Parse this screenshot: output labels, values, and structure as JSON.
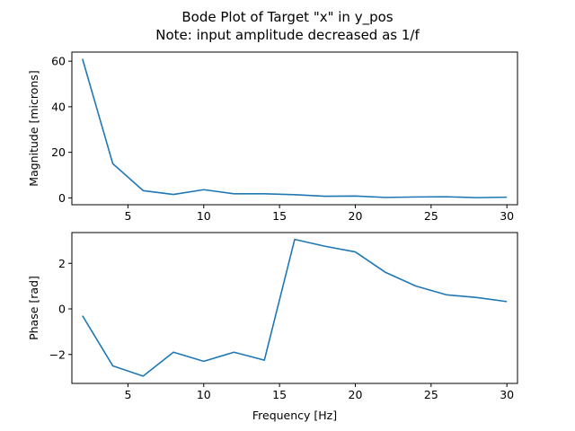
{
  "figure": {
    "title_line1": "Bode Plot of Target \"x\" in y_pos",
    "title_line2": "Note: input amplitude decreased as 1/f"
  },
  "chart_data": [
    {
      "type": "line",
      "id": "magnitude",
      "title": "",
      "xlabel": "",
      "ylabel": "Magnitude [microns]",
      "xlim": [
        1.3,
        30.7
      ],
      "ylim": [
        -3,
        64
      ],
      "xticks": [
        5,
        10,
        15,
        20,
        25,
        30
      ],
      "yticks": [
        0,
        20,
        40,
        60
      ],
      "grid": false,
      "color": "#1f77b4",
      "x": [
        2,
        4,
        6,
        8,
        10,
        12,
        14,
        16,
        18,
        20,
        22,
        24,
        26,
        28,
        30
      ],
      "y": [
        61,
        15,
        3.2,
        1.5,
        3.6,
        1.8,
        1.8,
        1.4,
        0.7,
        0.8,
        0.2,
        0.4,
        0.5,
        0.1,
        0.3
      ]
    },
    {
      "type": "line",
      "id": "phase",
      "title": "",
      "xlabel": "Frequency [Hz]",
      "ylabel": "Phase [rad]",
      "xlim": [
        1.3,
        30.7
      ],
      "ylim": [
        -3.27,
        3.35
      ],
      "xticks": [
        5,
        10,
        15,
        20,
        25,
        30
      ],
      "yticks": [
        -2,
        0,
        2
      ],
      "grid": false,
      "color": "#1f77b4",
      "x": [
        2,
        4,
        6,
        8,
        10,
        12,
        14,
        16,
        18,
        20,
        22,
        24,
        26,
        28,
        30
      ],
      "y": [
        -0.3,
        -2.5,
        -2.95,
        -1.9,
        -2.3,
        -1.9,
        -2.25,
        3.05,
        2.75,
        2.5,
        1.6,
        1.0,
        0.62,
        0.5,
        0.32
      ]
    }
  ]
}
